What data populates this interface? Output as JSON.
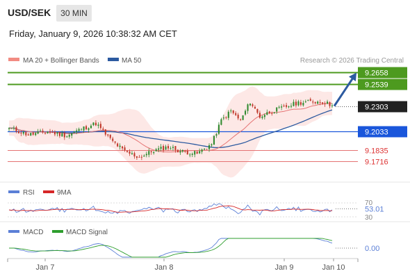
{
  "header": {
    "symbol": "USD/SEK",
    "timeframe": "30 MIN",
    "datetime": "Friday, January 9, 2026 10:38:32 AM CET"
  },
  "legend": {
    "ma20_bb": "MA 20 + Bollinger Bands",
    "ma50": "MA 50",
    "credit": "Research © 2026 Trading Central",
    "rsi": "RSI",
    "rsi_ma": "9MA",
    "macd": "MACD",
    "macd_signal": "MACD Signal"
  },
  "colors": {
    "up_candle": "#2f8a2f",
    "down_candle": "#c0392b",
    "bollinger_fill": "#fbd5d2",
    "ma20": "#e57373",
    "ma50": "#2c5aa0",
    "resistance": "#4d9a1f",
    "pivot": "#1a56db",
    "support": "#e57373",
    "arrow": "#2c5aa0",
    "rsi": "#5b7fd6",
    "rsi_ma": "#d62728",
    "macd": "#5b7fd6",
    "macd_signal": "#2e9e2e"
  },
  "chart_data": [
    {
      "type": "candlestick",
      "title": "USD/SEK 30 MIN",
      "x_labels": [
        "Jan 7",
        "Jan 8",
        "Jan 9",
        "Jan 10"
      ],
      "ylim": [
        9.16,
        9.275
      ],
      "levels": [
        {
          "label": "9.2658",
          "value": 9.2658,
          "kind": "resistance"
        },
        {
          "label": "9.2539",
          "value": 9.2539,
          "kind": "resistance"
        },
        {
          "label": "9.2303",
          "value": 9.2303,
          "kind": "last"
        },
        {
          "label": "9.2033",
          "value": 9.2033,
          "kind": "pivot"
        },
        {
          "label": "9.1835",
          "value": 9.1835,
          "kind": "support"
        },
        {
          "label": "9.1716",
          "value": 9.1716,
          "kind": "support"
        }
      ],
      "close_anchors": [
        [
          0,
          9.207
        ],
        [
          8,
          9.2
        ],
        [
          16,
          9.203
        ],
        [
          24,
          9.199
        ],
        [
          30,
          9.206
        ],
        [
          36,
          9.212
        ],
        [
          42,
          9.195
        ],
        [
          48,
          9.182
        ],
        [
          54,
          9.176
        ],
        [
          60,
          9.183
        ],
        [
          66,
          9.187
        ],
        [
          72,
          9.182
        ],
        [
          78,
          9.18
        ],
        [
          84,
          9.19
        ],
        [
          88,
          9.215
        ],
        [
          92,
          9.225
        ],
        [
          96,
          9.215
        ],
        [
          100,
          9.235
        ],
        [
          104,
          9.219
        ],
        [
          108,
          9.224
        ],
        [
          114,
          9.229
        ],
        [
          120,
          9.234
        ],
        [
          126,
          9.235
        ],
        [
          130,
          9.235
        ],
        [
          134,
          9.231
        ]
      ],
      "forecast": {
        "from": 9.2303,
        "to": 9.2658
      }
    },
    {
      "type": "line",
      "title": "RSI",
      "series": [
        {
          "name": "RSI"
        },
        {
          "name": "9MA"
        }
      ],
      "ticks": [
        "70",
        "30"
      ],
      "last_value": "53.01",
      "ylim": [
        30,
        70
      ]
    },
    {
      "type": "line",
      "title": "MACD",
      "series": [
        {
          "name": "MACD"
        },
        {
          "name": "MACD Signal"
        }
      ],
      "last_value": "0.00"
    }
  ]
}
